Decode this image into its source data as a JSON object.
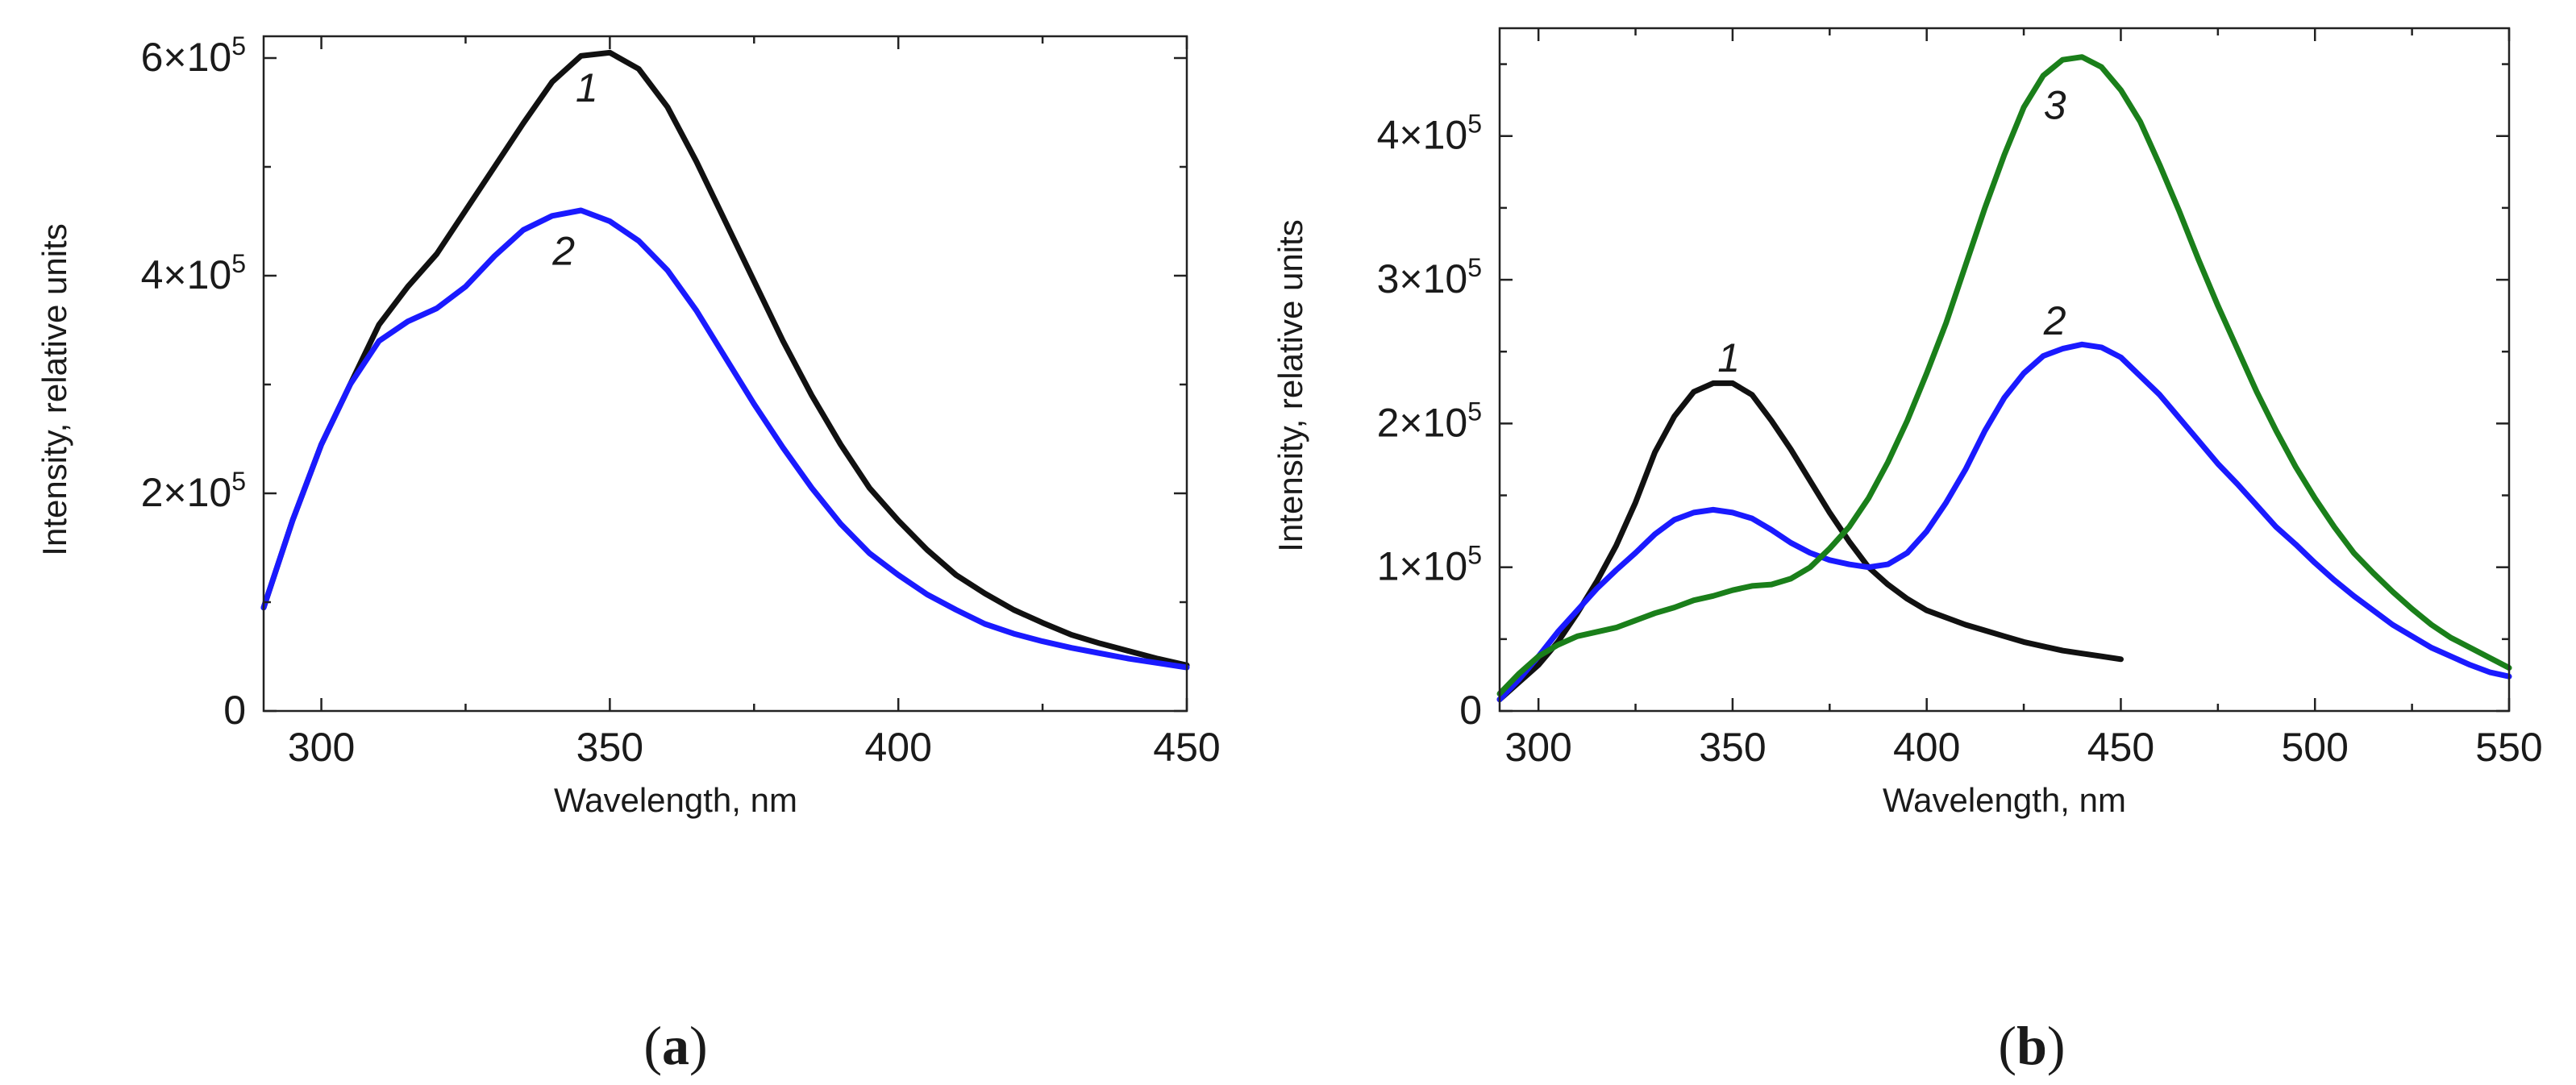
{
  "chart_data": [
    {
      "id": "a",
      "type": "line",
      "panel_label": "a",
      "xlabel": "Wavelength, nm",
      "ylabel": "Intensity, relative units",
      "xlim": [
        290,
        450
      ],
      "ylim": [
        0,
        620000
      ],
      "x_ticks": [
        {
          "value": 300,
          "label": "300"
        },
        {
          "value": 350,
          "label": "350"
        },
        {
          "value": 400,
          "label": "400"
        },
        {
          "value": 450,
          "label": "450"
        }
      ],
      "x_minor_ticks": [
        325,
        375,
        425
      ],
      "y_ticks": [
        {
          "value": 0,
          "mant": "0",
          "exp": ""
        },
        {
          "value": 200000,
          "mant": "2×10",
          "exp": "5"
        },
        {
          "value": 400000,
          "mant": "4×10",
          "exp": "5"
        },
        {
          "value": 600000,
          "mant": "6×10",
          "exp": "5"
        }
      ],
      "y_minor_ticks": [
        100000,
        300000,
        500000
      ],
      "series": [
        {
          "name": "1",
          "color": "#111111",
          "label_at": [
            346,
            560000
          ],
          "points": [
            [
              290,
              95000
            ],
            [
              295,
              175000
            ],
            [
              300,
              245000
            ],
            [
              305,
              300000
            ],
            [
              310,
              355000
            ],
            [
              315,
              390000
            ],
            [
              320,
              420000
            ],
            [
              325,
              460000
            ],
            [
              330,
              500000
            ],
            [
              335,
              540000
            ],
            [
              340,
              578000
            ],
            [
              345,
              602000
            ],
            [
              350,
              605000
            ],
            [
              355,
              590000
            ],
            [
              360,
              555000
            ],
            [
              365,
              505000
            ],
            [
              370,
              450000
            ],
            [
              375,
              395000
            ],
            [
              380,
              340000
            ],
            [
              385,
              290000
            ],
            [
              390,
              245000
            ],
            [
              395,
              205000
            ],
            [
              400,
              175000
            ],
            [
              405,
              148000
            ],
            [
              410,
              125000
            ],
            [
              415,
              108000
            ],
            [
              420,
              93000
            ],
            [
              425,
              81000
            ],
            [
              430,
              70000
            ],
            [
              435,
              62000
            ],
            [
              440,
              55000
            ],
            [
              445,
              48000
            ],
            [
              450,
              42000
            ]
          ]
        },
        {
          "name": "2",
          "color": "#1a1aff",
          "label_at": [
            342,
            410000
          ],
          "points": [
            [
              290,
              95000
            ],
            [
              295,
              175000
            ],
            [
              300,
              245000
            ],
            [
              305,
              300000
            ],
            [
              310,
              340000
            ],
            [
              315,
              358000
            ],
            [
              320,
              370000
            ],
            [
              325,
              390000
            ],
            [
              330,
              418000
            ],
            [
              335,
              442000
            ],
            [
              340,
              455000
            ],
            [
              345,
              460000
            ],
            [
              350,
              450000
            ],
            [
              355,
              432000
            ],
            [
              360,
              405000
            ],
            [
              365,
              368000
            ],
            [
              370,
              325000
            ],
            [
              375,
              282000
            ],
            [
              380,
              242000
            ],
            [
              385,
              205000
            ],
            [
              390,
              172000
            ],
            [
              395,
              145000
            ],
            [
              400,
              125000
            ],
            [
              405,
              107000
            ],
            [
              410,
              93000
            ],
            [
              415,
              80000
            ],
            [
              420,
              71000
            ],
            [
              425,
              64000
            ],
            [
              430,
              58000
            ],
            [
              435,
              53000
            ],
            [
              440,
              48000
            ],
            [
              445,
              44000
            ],
            [
              450,
              40000
            ]
          ]
        }
      ]
    },
    {
      "id": "b",
      "type": "line",
      "panel_label": "b",
      "xlabel": "Wavelength, nm",
      "ylabel": "Intensity, relative units",
      "xlim": [
        290,
        550
      ],
      "ylim": [
        0,
        475000
      ],
      "x_ticks": [
        {
          "value": 300,
          "label": "300"
        },
        {
          "value": 350,
          "label": "350"
        },
        {
          "value": 400,
          "label": "400"
        },
        {
          "value": 450,
          "label": "450"
        },
        {
          "value": 500,
          "label": "500"
        },
        {
          "value": 550,
          "label": "550"
        }
      ],
      "x_minor_ticks": [
        325,
        375,
        425,
        475,
        525
      ],
      "y_ticks": [
        {
          "value": 0,
          "mant": "0",
          "exp": ""
        },
        {
          "value": 100000,
          "mant": "1×10",
          "exp": "5"
        },
        {
          "value": 200000,
          "mant": "2×10",
          "exp": "5"
        },
        {
          "value": 300000,
          "mant": "3×10",
          "exp": "5"
        },
        {
          "value": 400000,
          "mant": "4×10",
          "exp": "5"
        }
      ],
      "y_minor_ticks": [
        50000,
        150000,
        250000,
        350000,
        450000
      ],
      "series": [
        {
          "name": "1",
          "color": "#111111",
          "label_at": [
            349,
            236000
          ],
          "points": [
            [
              290,
              8000
            ],
            [
              295,
              20000
            ],
            [
              300,
              32000
            ],
            [
              305,
              48000
            ],
            [
              310,
              68000
            ],
            [
              315,
              90000
            ],
            [
              320,
              115000
            ],
            [
              325,
              145000
            ],
            [
              330,
              180000
            ],
            [
              335,
              205000
            ],
            [
              340,
              222000
            ],
            [
              345,
              228000
            ],
            [
              350,
              228000
            ],
            [
              355,
              220000
            ],
            [
              360,
              202000
            ],
            [
              365,
              182000
            ],
            [
              370,
              160000
            ],
            [
              375,
              138000
            ],
            [
              380,
              118000
            ],
            [
              385,
              100000
            ],
            [
              390,
              88000
            ],
            [
              395,
              78000
            ],
            [
              400,
              70000
            ],
            [
              405,
              65000
            ],
            [
              410,
              60000
            ],
            [
              415,
              56000
            ],
            [
              420,
              52000
            ],
            [
              425,
              48000
            ],
            [
              430,
              45000
            ],
            [
              435,
              42000
            ],
            [
              440,
              40000
            ],
            [
              445,
              38000
            ],
            [
              450,
              36000
            ]
          ]
        },
        {
          "name": "2",
          "color": "#1a1aff",
          "label_at": [
            433,
            262000
          ],
          "points": [
            [
              290,
              8000
            ],
            [
              295,
              22000
            ],
            [
              300,
              38000
            ],
            [
              305,
              55000
            ],
            [
              310,
              70000
            ],
            [
              315,
              85000
            ],
            [
              320,
              98000
            ],
            [
              325,
              110000
            ],
            [
              330,
              123000
            ],
            [
              335,
              133000
            ],
            [
              340,
              138000
            ],
            [
              345,
              140000
            ],
            [
              350,
              138000
            ],
            [
              355,
              134000
            ],
            [
              360,
              126000
            ],
            [
              365,
              117000
            ],
            [
              370,
              110000
            ],
            [
              375,
              105000
            ],
            [
              380,
              102000
            ],
            [
              385,
              100000
            ],
            [
              390,
              102000
            ],
            [
              395,
              110000
            ],
            [
              400,
              125000
            ],
            [
              405,
              145000
            ],
            [
              410,
              168000
            ],
            [
              415,
              195000
            ],
            [
              420,
              218000
            ],
            [
              425,
              235000
            ],
            [
              430,
              247000
            ],
            [
              435,
              252000
            ],
            [
              440,
              255000
            ],
            [
              445,
              253000
            ],
            [
              450,
              246000
            ],
            [
              455,
              233000
            ],
            [
              460,
              220000
            ],
            [
              465,
              204000
            ],
            [
              470,
              188000
            ],
            [
              475,
              172000
            ],
            [
              480,
              158000
            ],
            [
              485,
              143000
            ],
            [
              490,
              128000
            ],
            [
              495,
              116000
            ],
            [
              500,
              103000
            ],
            [
              505,
              91000
            ],
            [
              510,
              80000
            ],
            [
              515,
              70000
            ],
            [
              520,
              60000
            ],
            [
              525,
              52000
            ],
            [
              530,
              44000
            ],
            [
              535,
              38000
            ],
            [
              540,
              32000
            ],
            [
              545,
              27000
            ],
            [
              550,
              24000
            ]
          ]
        },
        {
          "name": "3",
          "color": "#1a7f1a",
          "label_at": [
            433,
            412000
          ],
          "points": [
            [
              290,
              12000
            ],
            [
              295,
              26000
            ],
            [
              300,
              38000
            ],
            [
              305,
              46000
            ],
            [
              310,
              52000
            ],
            [
              315,
              55000
            ],
            [
              320,
              58000
            ],
            [
              325,
              63000
            ],
            [
              330,
              68000
            ],
            [
              335,
              72000
            ],
            [
              340,
              77000
            ],
            [
              345,
              80000
            ],
            [
              350,
              84000
            ],
            [
              355,
              87000
            ],
            [
              360,
              88000
            ],
            [
              365,
              92000
            ],
            [
              370,
              100000
            ],
            [
              375,
              113000
            ],
            [
              380,
              128000
            ],
            [
              385,
              148000
            ],
            [
              390,
              173000
            ],
            [
              395,
              202000
            ],
            [
              400,
              235000
            ],
            [
              405,
              270000
            ],
            [
              410,
              310000
            ],
            [
              415,
              350000
            ],
            [
              420,
              387000
            ],
            [
              425,
              420000
            ],
            [
              430,
              442000
            ],
            [
              435,
              453000
            ],
            [
              440,
              455000
            ],
            [
              445,
              448000
            ],
            [
              450,
              432000
            ],
            [
              455,
              410000
            ],
            [
              460,
              380000
            ],
            [
              465,
              348000
            ],
            [
              470,
              314000
            ],
            [
              475,
              282000
            ],
            [
              480,
              252000
            ],
            [
              485,
              222000
            ],
            [
              490,
              195000
            ],
            [
              495,
              170000
            ],
            [
              500,
              148000
            ],
            [
              505,
              128000
            ],
            [
              510,
              110000
            ],
            [
              515,
              96000
            ],
            [
              520,
              83000
            ],
            [
              525,
              71000
            ],
            [
              530,
              60000
            ],
            [
              535,
              51000
            ],
            [
              540,
              44000
            ],
            [
              545,
              37000
            ],
            [
              550,
              30000
            ]
          ]
        }
      ]
    }
  ]
}
